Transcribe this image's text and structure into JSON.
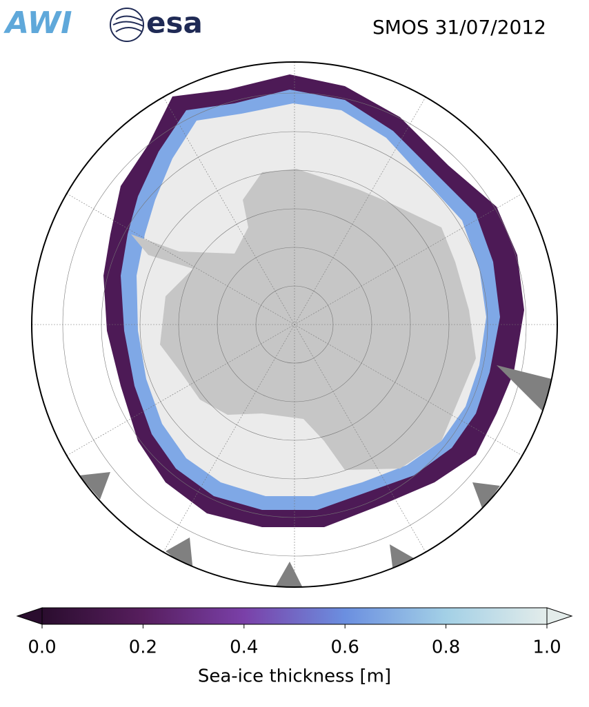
{
  "title": "SMOS 31/07/2012",
  "logos": [
    "AWI",
    "esa"
  ],
  "colorbar": {
    "label": "Sea-ice thickness [m]",
    "lim": [
      0,
      1
    ],
    "ticks": [
      {
        "value": 0,
        "label": "0.0"
      },
      0.2,
      0.4,
      0.6,
      0.8,
      {
        "value": 1,
        "label": "1.0"
      }
    ],
    "colors": [
      "#2a0d2e",
      "#571e5e",
      "#7a40a8",
      "#6b8fe0",
      "#a3d0e6",
      "#e3ecea"
    ]
  }
}
